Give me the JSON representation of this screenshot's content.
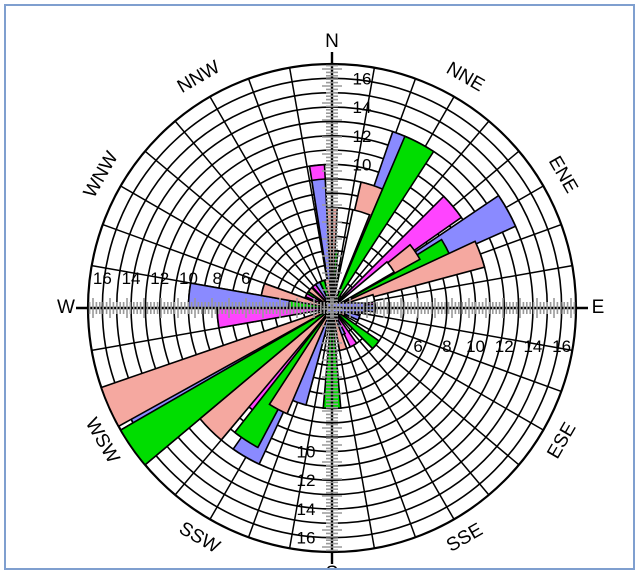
{
  "chart_data": {
    "type": "wind-rose",
    "title": "",
    "directions": [
      "N",
      "NNE",
      "ENE",
      "E",
      "ESE",
      "SSE",
      "S",
      "SSW",
      "WSW",
      "W",
      "WNW",
      "NNW"
    ],
    "radial_ticks": [
      "6",
      "8",
      "10",
      "12",
      "14",
      "16"
    ],
    "radial_range": [
      0,
      17
    ],
    "legend": "none",
    "series": [
      {
        "color": "#ff44ff",
        "values": [
          [
            10,
            -6,
            3
          ],
          [
            11,
            25,
            5
          ],
          [
            11,
            50,
            5
          ],
          [
            3,
            82,
            5
          ],
          [
            2,
            100,
            5
          ],
          [
            3,
            150,
            5
          ],
          [
            6,
            200,
            5
          ],
          [
            9,
            217,
            5
          ],
          [
            12,
            242,
            5
          ],
          [
            8,
            265,
            5
          ],
          [
            2,
            298,
            5
          ],
          [
            2,
            322,
            5
          ]
        ]
      },
      {
        "color": "#8a8aff",
        "values": [
          [
            9,
            -6,
            3
          ],
          [
            13,
            24,
            5
          ],
          [
            14,
            61,
            5
          ],
          [
            3,
            90,
            5
          ],
          [
            2,
            110,
            5
          ],
          [
            2,
            158,
            5
          ],
          [
            7,
            200,
            5
          ],
          [
            12,
            210,
            5
          ],
          [
            16,
            242,
            5
          ],
          [
            10,
            275,
            5
          ],
          [
            1,
            300,
            5
          ],
          [
            2,
            330,
            5
          ]
        ]
      },
      {
        "color": "#00dd00",
        "values": [
          [
            4,
            3,
            3
          ],
          [
            13,
            28,
            5
          ],
          [
            9,
            63,
            5
          ],
          [
            2,
            96,
            5
          ],
          [
            4,
            130,
            5
          ],
          [
            7,
            180,
            5
          ],
          [
            11,
            213,
            5
          ],
          [
            17,
            235,
            5
          ],
          [
            3,
            275,
            5
          ],
          [
            2,
            305,
            5
          ],
          [
            2,
            340,
            5
          ]
        ]
      },
      {
        "color": "#f5a8a0",
        "values": [
          [
            7,
            0,
            3
          ],
          [
            9,
            18,
            5
          ],
          [
            7,
            56,
            5
          ],
          [
            11,
            70,
            5
          ],
          [
            1,
            120,
            5
          ],
          [
            3,
            165,
            5
          ],
          [
            8,
            208,
            5
          ],
          [
            12,
            225,
            5
          ],
          [
            17,
            246,
            5
          ],
          [
            5,
            285,
            5
          ],
          [
            2,
            310,
            5
          ],
          [
            2,
            350,
            5
          ]
        ]
      },
      {
        "color": "#ffffff",
        "values": [
          [
            7,
            17,
            5
          ],
          [
            5,
            55,
            5
          ],
          [
            3,
            77,
            5
          ]
        ]
      }
    ]
  }
}
